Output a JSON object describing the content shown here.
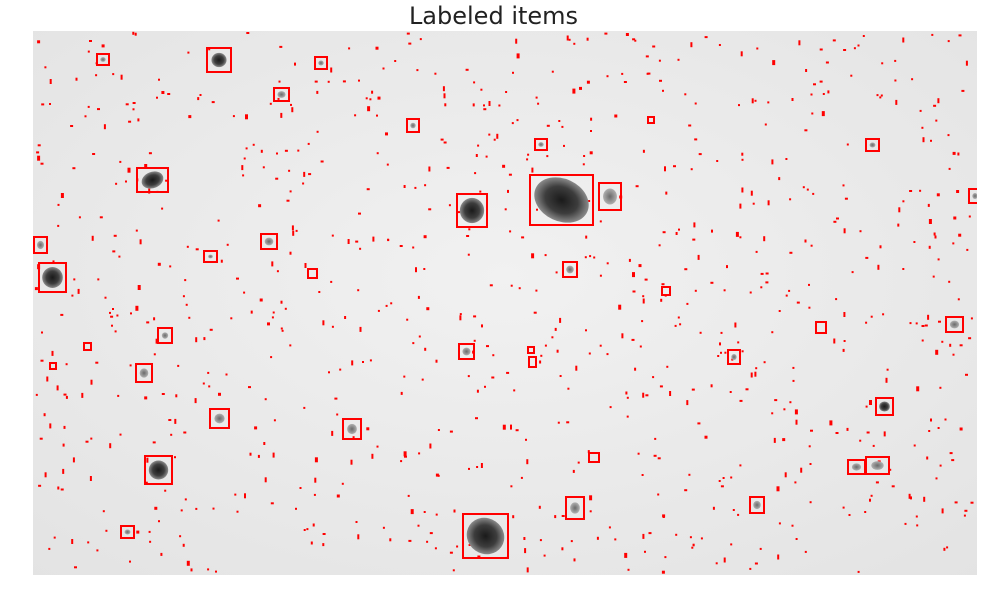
{
  "figure": {
    "title": "Labeled items",
    "box_color": "#ff0000",
    "background_tone": "#ececec",
    "particle_tone": "#3a3a3a",
    "axes_visible": false
  }
}
